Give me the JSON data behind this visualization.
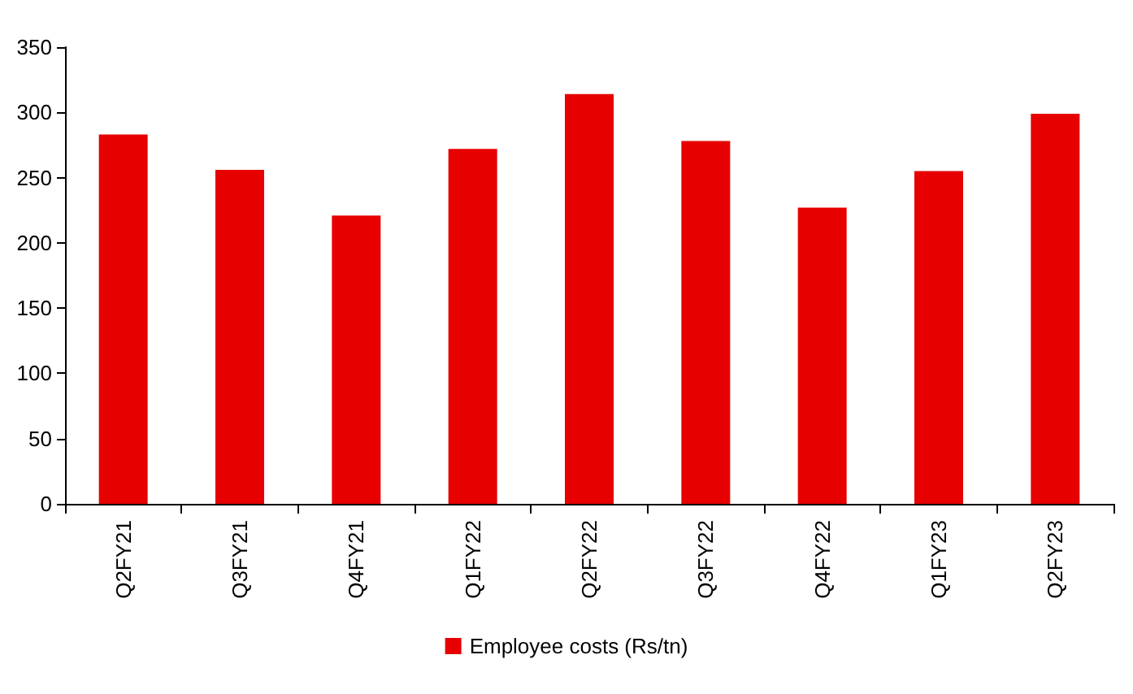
{
  "chart_data": {
    "type": "bar",
    "categories": [
      "Q2FY21",
      "Q3FY21",
      "Q4FY21",
      "Q1FY22",
      "Q2FY22",
      "Q3FY22",
      "Q4FY22",
      "Q1FY23",
      "Q2FY23"
    ],
    "series": [
      {
        "name": "Employee costs (Rs/tn)",
        "color": "#e60000",
        "values": [
          283,
          256,
          221,
          272,
          314,
          278,
          227,
          255,
          299
        ]
      }
    ],
    "ylim": [
      0,
      350
    ],
    "yticks": [
      0,
      50,
      100,
      150,
      200,
      250,
      300,
      350
    ],
    "grid": false,
    "legend": "bottom"
  }
}
